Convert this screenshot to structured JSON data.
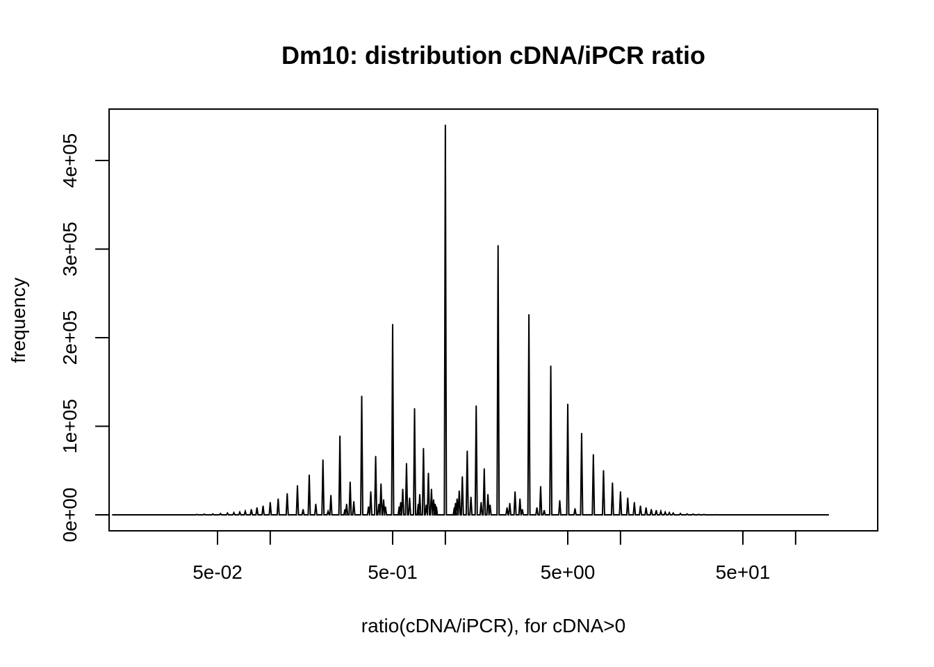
{
  "chart_data": {
    "type": "line",
    "title": "Dm10: distribution cDNA/iPCR ratio",
    "xlabel": "ratio(cDNA/iPCR), for cDNA>0",
    "ylabel": "frequency",
    "x_scale": "log10",
    "xlim": [
      0.01,
      200
    ],
    "ylim": [
      0,
      440000
    ],
    "grid": false,
    "legend": "none",
    "line_color": "#000000",
    "x_ticks": [
      {
        "value": 0.05,
        "label": "5e-02"
      },
      {
        "value": 0.1,
        "label": ""
      },
      {
        "value": 0.5,
        "label": "5e-01"
      },
      {
        "value": 1,
        "label": ""
      },
      {
        "value": 5,
        "label": "5e+00"
      },
      {
        "value": 10,
        "label": ""
      },
      {
        "value": 50,
        "label": "5e+01"
      },
      {
        "value": 100,
        "label": ""
      }
    ],
    "y_ticks": [
      {
        "value": 0,
        "label": "0e+00"
      },
      {
        "value": 100000,
        "label": "1e+05"
      },
      {
        "value": 200000,
        "label": "2e+05"
      },
      {
        "value": 300000,
        "label": "3e+05"
      },
      {
        "value": 400000,
        "label": "4e+05"
      }
    ],
    "series": [
      {
        "points": [
          [
            0.0125,
            0
          ],
          [
            0.02,
            0
          ],
          [
            0.03,
            0
          ],
          [
            0.038,
            500
          ],
          [
            0.042,
            800
          ],
          [
            0.047,
            1000
          ],
          [
            0.052,
            1500
          ],
          [
            0.057,
            2000
          ],
          [
            0.062,
            2500
          ],
          [
            0.067,
            3000
          ],
          [
            0.072,
            4000
          ],
          [
            0.078,
            6000
          ],
          [
            0.084,
            8000
          ],
          [
            0.091,
            10000
          ],
          [
            0.1,
            14000
          ],
          [
            0.111,
            18000
          ],
          [
            0.125,
            24000
          ],
          [
            0.143,
            33000
          ],
          [
            0.154,
            6000
          ],
          [
            0.167,
            45000
          ],
          [
            0.182,
            12000
          ],
          [
            0.2,
            62000
          ],
          [
            0.214,
            4000
          ],
          [
            0.222,
            22000
          ],
          [
            0.25,
            89000
          ],
          [
            0.267,
            6000
          ],
          [
            0.273,
            12000
          ],
          [
            0.286,
            37000
          ],
          [
            0.3,
            15000
          ],
          [
            0.333,
            134000
          ],
          [
            0.364,
            9000
          ],
          [
            0.375,
            26000
          ],
          [
            0.4,
            66000
          ],
          [
            0.417,
            12000
          ],
          [
            0.429,
            35000
          ],
          [
            0.444,
            17000
          ],
          [
            0.455,
            9000
          ],
          [
            0.5,
            215000
          ],
          [
            0.545,
            9000
          ],
          [
            0.556,
            14000
          ],
          [
            0.571,
            29000
          ],
          [
            0.6,
            58000
          ],
          [
            0.625,
            19000
          ],
          [
            0.667,
            120000
          ],
          [
            0.7,
            12000
          ],
          [
            0.714,
            23000
          ],
          [
            0.75,
            75000
          ],
          [
            0.778,
            11000
          ],
          [
            0.8,
            47000
          ],
          [
            0.833,
            29000
          ],
          [
            0.857,
            17000
          ],
          [
            0.875,
            12000
          ],
          [
            0.889,
            9000
          ],
          [
            1,
            440000
          ],
          [
            1.125,
            8000
          ],
          [
            1.143,
            13000
          ],
          [
            1.167,
            18000
          ],
          [
            1.2,
            27000
          ],
          [
            1.25,
            43000
          ],
          [
            1.333,
            72000
          ],
          [
            1.4,
            20000
          ],
          [
            1.5,
            123000
          ],
          [
            1.6,
            14000
          ],
          [
            1.667,
            52000
          ],
          [
            1.75,
            23000
          ],
          [
            1.8,
            11000
          ],
          [
            2,
            304000
          ],
          [
            2.25,
            8000
          ],
          [
            2.333,
            13000
          ],
          [
            2.5,
            26000
          ],
          [
            2.667,
            18000
          ],
          [
            2.75,
            6000
          ],
          [
            3,
            226000
          ],
          [
            3.333,
            8000
          ],
          [
            3.5,
            32000
          ],
          [
            3.667,
            5000
          ],
          [
            4,
            168000
          ],
          [
            4.5,
            16000
          ],
          [
            5,
            125000
          ],
          [
            5.5,
            7000
          ],
          [
            6,
            92000
          ],
          [
            7,
            68000
          ],
          [
            8,
            50000
          ],
          [
            9,
            36000
          ],
          [
            10,
            26000
          ],
          [
            11,
            19000
          ],
          [
            12,
            14000
          ],
          [
            13,
            10000
          ],
          [
            14,
            8000
          ],
          [
            15,
            6000
          ],
          [
            16,
            5000
          ],
          [
            17,
            4000
          ],
          [
            18,
            3000
          ],
          [
            19,
            2500
          ],
          [
            20,
            2000
          ],
          [
            22,
            1500
          ],
          [
            24,
            1000
          ],
          [
            26,
            800
          ],
          [
            28,
            600
          ],
          [
            30,
            400
          ],
          [
            35,
            200
          ],
          [
            40,
            0
          ],
          [
            60,
            0
          ],
          [
            100,
            0
          ],
          [
            155,
            0
          ]
        ]
      }
    ]
  }
}
